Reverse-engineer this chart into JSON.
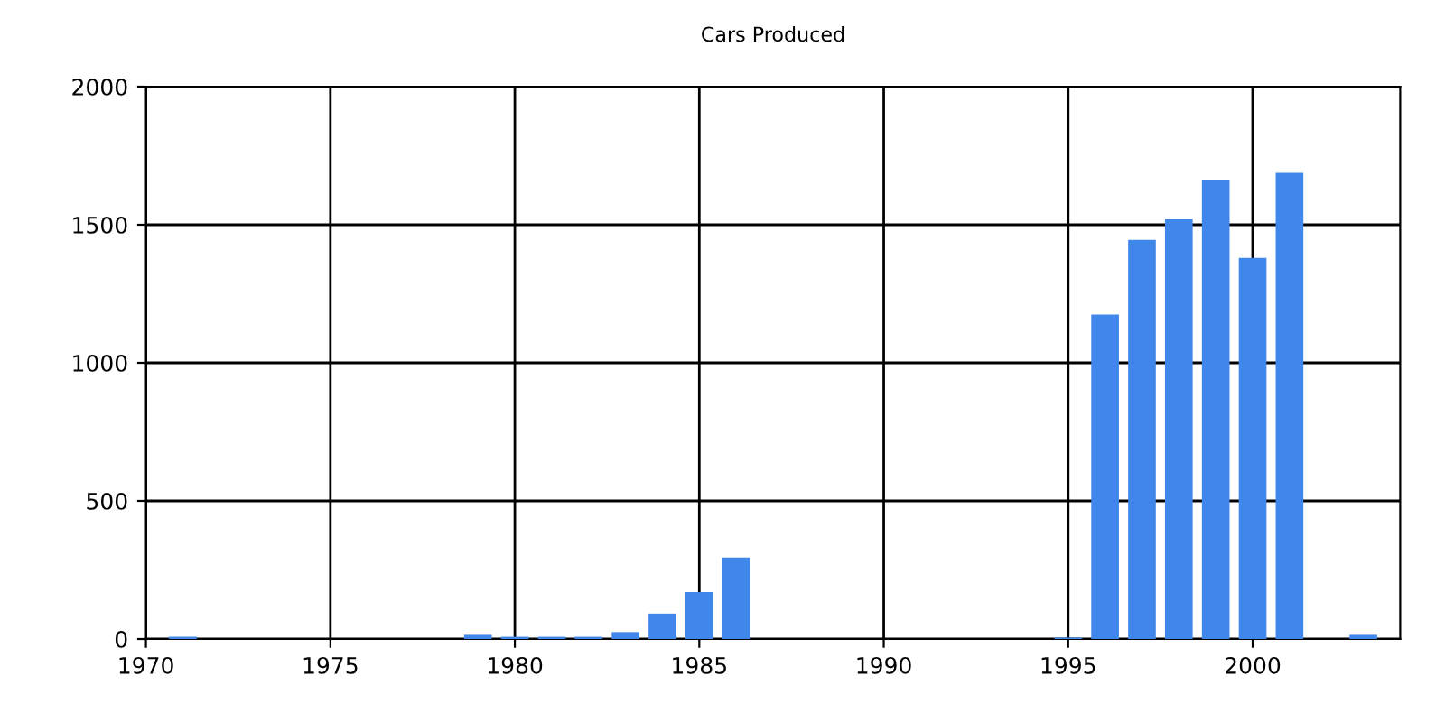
{
  "chart_data": {
    "type": "bar",
    "title": "Cars Produced",
    "x": [
      1971,
      1979,
      1980,
      1981,
      1982,
      1983,
      1984,
      1985,
      1986,
      1995,
      1996,
      1997,
      1998,
      1999,
      2000,
      2001,
      2003
    ],
    "values": [
      8,
      15,
      8,
      8,
      8,
      25,
      92,
      170,
      295,
      5,
      1175,
      1445,
      1520,
      1660,
      1380,
      1688,
      15
    ],
    "color": "#3f87eb",
    "xlim": [
      1970,
      2004
    ],
    "xticks": [
      1970,
      1975,
      1980,
      1985,
      1990,
      1995,
      2000
    ],
    "ylim": [
      0,
      2000
    ],
    "yticks": [
      0,
      500,
      1000,
      1500,
      2000
    ],
    "grid": true,
    "legend": false
  }
}
